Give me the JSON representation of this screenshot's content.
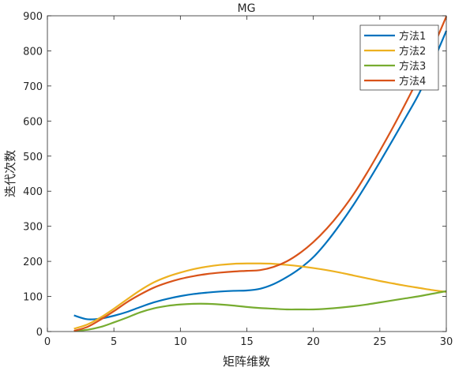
{
  "chart_data": {
    "type": "line",
    "title": "MG",
    "xlabel": "矩阵维数",
    "ylabel": "迭代次数",
    "xlim": [
      0,
      30
    ],
    "ylim": [
      0,
      900
    ],
    "xticks": [
      0,
      5,
      10,
      15,
      20,
      25,
      30
    ],
    "yticks": [
      0,
      100,
      200,
      300,
      400,
      500,
      600,
      700,
      800,
      900
    ],
    "grid": false,
    "legend_position": "top-right",
    "x": [
      2,
      3,
      4,
      5,
      6,
      7,
      8,
      9,
      10,
      11,
      12,
      13,
      14,
      15,
      16,
      17,
      18,
      19,
      20,
      21,
      22,
      23,
      24,
      25,
      26,
      27,
      28,
      29,
      30
    ],
    "series": [
      {
        "name": "方法1",
        "color": "#0072BD",
        "values": [
          46,
          35,
          37,
          45,
          56,
          70,
          83,
          93,
          101,
          107,
          111,
          114,
          116,
          117,
          122,
          135,
          155,
          180,
          212,
          255,
          305,
          360,
          420,
          483,
          548,
          614,
          682,
          768,
          857
        ]
      },
      {
        "name": "方法2",
        "color": "#EDB120",
        "values": [
          8,
          20,
          40,
          65,
          92,
          118,
          140,
          156,
          168,
          178,
          185,
          190,
          193,
          194,
          194,
          193,
          190,
          186,
          181,
          175,
          168,
          160,
          152,
          144,
          137,
          130,
          124,
          118,
          113
        ]
      },
      {
        "name": "方法3",
        "color": "#77AC30",
        "values": [
          2,
          5,
          13,
          26,
          40,
          55,
          66,
          73,
          77,
          79,
          79,
          77,
          74,
          70,
          67,
          65,
          63,
          63,
          63,
          65,
          68,
          72,
          77,
          83,
          89,
          95,
          101,
          108,
          115
        ]
      },
      {
        "name": "方法4",
        "color": "#D95319",
        "values": [
          2,
          13,
          34,
          58,
          84,
          106,
          125,
          139,
          150,
          158,
          164,
          168,
          171,
          173,
          175,
          184,
          200,
          224,
          255,
          293,
          338,
          390,
          450,
          515,
          583,
          655,
          730,
          810,
          898
        ]
      }
    ]
  }
}
